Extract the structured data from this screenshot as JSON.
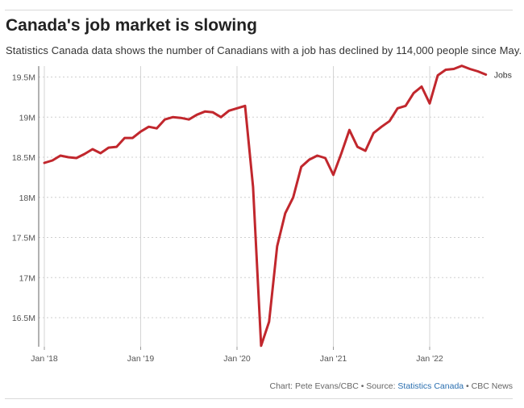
{
  "header": {
    "title": "Canada's job market is slowing",
    "subtitle": "Statistics Canada data shows the number of Canadians with a job has declined by 114,000 people since May."
  },
  "footer": {
    "credit": "Chart: Pete Evans/CBC • Source: ",
    "source_link": "Statistics Canada",
    "outlet": " • CBC News"
  },
  "colors": {
    "line": "#c1272d",
    "grid": "#cfcfcf",
    "axis": "#999999"
  },
  "chart_data": {
    "type": "line",
    "title": "Canada's job market is slowing",
    "xlabel": "",
    "ylabel": "",
    "ylim": [
      16.2,
      19.7
    ],
    "y_ticks": [
      16.5,
      17.0,
      17.5,
      18.0,
      18.5,
      19.0,
      19.5
    ],
    "y_tick_labels": [
      "16.5M",
      "17M",
      "17.5M",
      "18M",
      "18.5M",
      "19M",
      "19.5M"
    ],
    "x_ticks": [
      "2018-01",
      "2019-01",
      "2020-01",
      "2021-01",
      "2022-01"
    ],
    "x_tick_labels": [
      "Jan '18",
      "Jan '19",
      "Jan '20",
      "Jan '21",
      "Jan '22"
    ],
    "grid": "dotted horizontal, solid vertical at January",
    "series": [
      {
        "name": "Jobs",
        "unit": "millions",
        "x": [
          "2018-01",
          "2018-02",
          "2018-03",
          "2018-04",
          "2018-05",
          "2018-06",
          "2018-07",
          "2018-08",
          "2018-09",
          "2018-10",
          "2018-11",
          "2018-12",
          "2019-01",
          "2019-02",
          "2019-03",
          "2019-04",
          "2019-05",
          "2019-06",
          "2019-07",
          "2019-08",
          "2019-09",
          "2019-10",
          "2019-11",
          "2019-12",
          "2020-01",
          "2020-02",
          "2020-03",
          "2020-04",
          "2020-05",
          "2020-06",
          "2020-07",
          "2020-08",
          "2020-09",
          "2020-10",
          "2020-11",
          "2020-12",
          "2021-01",
          "2021-02",
          "2021-03",
          "2021-04",
          "2021-05",
          "2021-06",
          "2021-07",
          "2021-08",
          "2021-09",
          "2021-10",
          "2021-11",
          "2021-12",
          "2022-01",
          "2022-02",
          "2022-03",
          "2022-04",
          "2022-05",
          "2022-06",
          "2022-07",
          "2022-08"
        ],
        "values": [
          18.43,
          18.46,
          18.52,
          18.5,
          18.49,
          18.54,
          18.6,
          18.55,
          18.62,
          18.63,
          18.74,
          18.74,
          18.82,
          18.88,
          18.86,
          18.97,
          19.0,
          18.99,
          18.97,
          19.03,
          19.07,
          19.06,
          19.0,
          19.08,
          19.11,
          19.14,
          18.13,
          16.15,
          16.45,
          17.39,
          17.8,
          18.0,
          18.38,
          18.47,
          18.52,
          18.49,
          18.28,
          18.55,
          18.84,
          18.63,
          18.58,
          18.8,
          18.88,
          18.95,
          19.11,
          19.14,
          19.3,
          19.38,
          19.17,
          19.52,
          19.59,
          19.6,
          19.64,
          19.6,
          19.57,
          19.53
        ]
      }
    ]
  }
}
